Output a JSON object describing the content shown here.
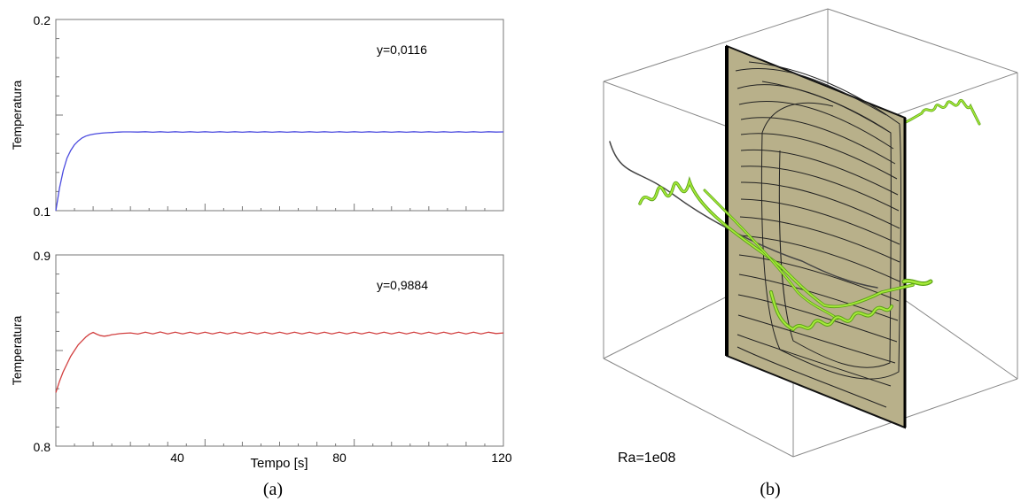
{
  "chart_data": [
    {
      "type": "line",
      "annotation": "y=0,0116",
      "ylabel": "Temperatura",
      "xlabel": "",
      "xlim": [
        0,
        120
      ],
      "ylim": [
        0.1,
        0.2
      ],
      "y_ticks": [
        "0.1",
        "0.2"
      ],
      "x_ticks": [],
      "grid": false,
      "series": [
        {
          "color": "#4a4adf",
          "x": [
            0,
            1,
            2,
            3,
            4,
            5,
            6,
            7,
            8,
            9,
            10,
            11,
            12,
            13,
            14,
            15,
            16,
            17,
            18,
            20,
            22,
            24,
            26,
            28,
            30,
            32,
            34,
            36,
            38,
            40,
            42,
            44,
            46,
            48,
            50,
            52,
            54,
            56,
            58,
            60,
            62,
            64,
            66,
            68,
            70,
            72,
            74,
            76,
            78,
            80,
            82,
            84,
            86,
            88,
            90,
            92,
            94,
            96,
            98,
            100,
            102,
            104,
            106,
            108,
            110,
            112,
            114,
            116,
            118,
            120
          ],
          "y": [
            0.1,
            0.112,
            0.121,
            0.1275,
            0.1315,
            0.1345,
            0.1365,
            0.138,
            0.139,
            0.1396,
            0.14,
            0.1403,
            0.1405,
            0.1407,
            0.1408,
            0.1409,
            0.141,
            0.1411,
            0.1412,
            0.1412,
            0.1411,
            0.1413,
            0.141,
            0.1413,
            0.141,
            0.1413,
            0.141,
            0.1413,
            0.141,
            0.1413,
            0.141,
            0.1413,
            0.141,
            0.1413,
            0.141,
            0.1413,
            0.141,
            0.1413,
            0.141,
            0.1413,
            0.141,
            0.1413,
            0.141,
            0.1413,
            0.141,
            0.1413,
            0.141,
            0.1413,
            0.141,
            0.1413,
            0.141,
            0.1413,
            0.141,
            0.1413,
            0.141,
            0.1413,
            0.141,
            0.1413,
            0.141,
            0.1413,
            0.141,
            0.1413,
            0.141,
            0.1413,
            0.141,
            0.1413,
            0.141,
            0.1413,
            0.1411,
            0.1412
          ]
        }
      ]
    },
    {
      "type": "line",
      "annotation": "y=0,9884",
      "ylabel": "Temperatura",
      "xlabel": "Tempo [s]",
      "xlim": [
        0,
        120
      ],
      "ylim": [
        0.8,
        0.9
      ],
      "y_ticks": [
        "0.8",
        "0.9"
      ],
      "x_ticks": [
        "40",
        "80",
        "120"
      ],
      "grid": false,
      "series": [
        {
          "color": "#d24040",
          "x": [
            0,
            1,
            2,
            3,
            4,
            5,
            6,
            7,
            8,
            9,
            10,
            11,
            12,
            13,
            14,
            15,
            16,
            17,
            18,
            20,
            22,
            24,
            26,
            28,
            30,
            32,
            34,
            36,
            38,
            40,
            42,
            44,
            46,
            48,
            50,
            52,
            54,
            56,
            58,
            60,
            62,
            64,
            66,
            68,
            70,
            72,
            74,
            76,
            78,
            80,
            82,
            84,
            86,
            88,
            90,
            92,
            94,
            96,
            98,
            100,
            102,
            104,
            106,
            108,
            110,
            112,
            114,
            116,
            118,
            120
          ],
          "y": [
            0.828,
            0.834,
            0.839,
            0.843,
            0.847,
            0.85,
            0.853,
            0.855,
            0.857,
            0.8585,
            0.8595,
            0.8585,
            0.8578,
            0.8575,
            0.8578,
            0.8583,
            0.8585,
            0.8588,
            0.859,
            0.8592,
            0.8586,
            0.8596,
            0.8587,
            0.8597,
            0.8587,
            0.8596,
            0.8587,
            0.8596,
            0.8587,
            0.8596,
            0.8587,
            0.8596,
            0.8587,
            0.8596,
            0.8587,
            0.8596,
            0.8587,
            0.8596,
            0.8587,
            0.8596,
            0.8587,
            0.8596,
            0.8587,
            0.8596,
            0.8587,
            0.8596,
            0.8587,
            0.8596,
            0.8587,
            0.8596,
            0.8587,
            0.8596,
            0.8587,
            0.8596,
            0.8587,
            0.8596,
            0.8587,
            0.8596,
            0.8587,
            0.8596,
            0.8587,
            0.8596,
            0.8587,
            0.8596,
            0.8587,
            0.8596,
            0.8587,
            0.8596,
            0.8589,
            0.8592
          ]
        }
      ]
    }
  ],
  "render3d": {
    "label": "Ra=1e08",
    "plane_color": "#b8b08a",
    "streamline_color": "#8ed629"
  },
  "captions": {
    "a": "(a)",
    "b": "(b)"
  }
}
